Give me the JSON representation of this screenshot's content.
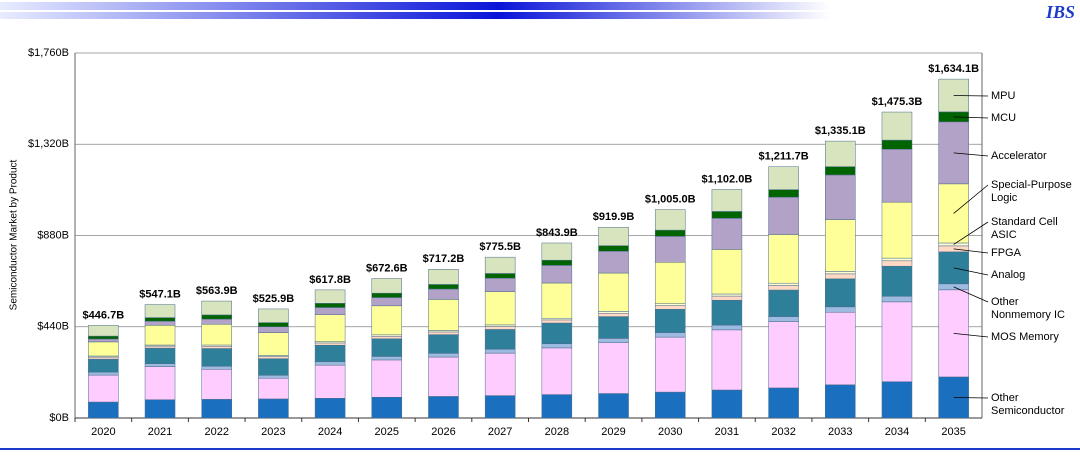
{
  "header": {
    "brand": "IBS"
  },
  "chart_data": {
    "type": "stacked-bar",
    "y_label": "Semiconductor Market by Product",
    "categories": [
      "2020",
      "2021",
      "2022",
      "2023",
      "2024",
      "2025",
      "2026",
      "2027",
      "2028",
      "2029",
      "2030",
      "2031",
      "2032",
      "2033",
      "2034",
      "2035"
    ],
    "ylim": [
      0,
      1760
    ],
    "yticks": [
      {
        "value": 0,
        "label": "$0B"
      },
      {
        "value": 440,
        "label": "$440B"
      },
      {
        "value": 880,
        "label": "$880B"
      },
      {
        "value": 1320,
        "label": "$1,320B"
      },
      {
        "value": 1760,
        "label": "$1,760B"
      }
    ],
    "grid": true,
    "legend": "right",
    "series": [
      {
        "name": "Other Semiconductor",
        "color": "#1b6fbf",
        "values": [
          77,
          88,
          90,
          92,
          95,
          100,
          104,
          108,
          113,
          118,
          125,
          135,
          145,
          160,
          175,
          198
        ]
      },
      {
        "name": "MOS Memory",
        "color": "#ffccff",
        "values": [
          130,
          160,
          145,
          100,
          160,
          180,
          190,
          205,
          225,
          245,
          265,
          290,
          320,
          350,
          385,
          420
        ]
      },
      {
        "name": "Other Nonmemory IC",
        "color": "#9dbbe0",
        "values": [
          14,
          14,
          15,
          14,
          16,
          17,
          18,
          19,
          20,
          21,
          22,
          23,
          24,
          26,
          27,
          29
        ]
      },
      {
        "name": "Analog",
        "color": "#2e7f9a",
        "values": [
          63,
          75,
          85,
          80,
          80,
          85,
          90,
          95,
          100,
          105,
          112,
          120,
          128,
          135,
          145,
          154
        ]
      },
      {
        "name": "FPGA",
        "color": "#ffd9c4",
        "values": [
          10,
          10,
          11,
          10,
          11,
          12,
          13,
          14,
          15,
          16,
          18,
          20,
          22,
          24,
          26,
          29
        ]
      },
      {
        "name": "Standard Cell ASIC",
        "color": "#ffffd6",
        "values": [
          5,
          5,
          6,
          6,
          6,
          7,
          7,
          8,
          8,
          9,
          9,
          10,
          11,
          12,
          13,
          14
        ]
      },
      {
        "name": "Special-Purpose Logic",
        "color": "#ffff99",
        "values": [
          68,
          95,
          100,
          110,
          130,
          140,
          150,
          160,
          170,
          185,
          200,
          215,
          235,
          250,
          270,
          285
        ]
      },
      {
        "name": "Accelerator",
        "color": "#b3a2c8",
        "values": [
          14,
          20,
          25,
          28,
          35,
          40,
          50,
          65,
          85,
          105,
          125,
          150,
          180,
          215,
          255,
          299
        ]
      },
      {
        "name": "MCU",
        "color": "#006400",
        "values": [
          14,
          17,
          20,
          20,
          20,
          21,
          22,
          23,
          25,
          27,
          30,
          33,
          36,
          40,
          44,
          48
        ]
      },
      {
        "name": "MPU",
        "color": "#d7e4bd",
        "values": [
          51.7,
          63,
          66.9,
          65.9,
          64.8,
          70.6,
          73.2,
          78.5,
          82.9,
          88.9,
          99.0,
          106,
          110.7,
          123.1,
          135.3,
          158.1
        ]
      }
    ],
    "totals": {
      "values": [
        446.7,
        547.1,
        563.9,
        525.9,
        617.8,
        672.6,
        717.2,
        775.5,
        843.9,
        919.9,
        1005.0,
        1102.0,
        1211.7,
        1335.1,
        1475.3,
        1634.1
      ],
      "value_labels": [
        "$446.7B",
        "$547.1B",
        "$563.9B",
        "$525.9B",
        "$617.8B",
        "$672.6B",
        "$717.2B",
        "$775.5B",
        "$843.9B",
        "$919.9B",
        "$1,005.0B",
        "$1,102.0B",
        "$1,211.7B",
        "$1,335.1B",
        "$1,475.3B",
        "$1,634.1B"
      ]
    }
  }
}
